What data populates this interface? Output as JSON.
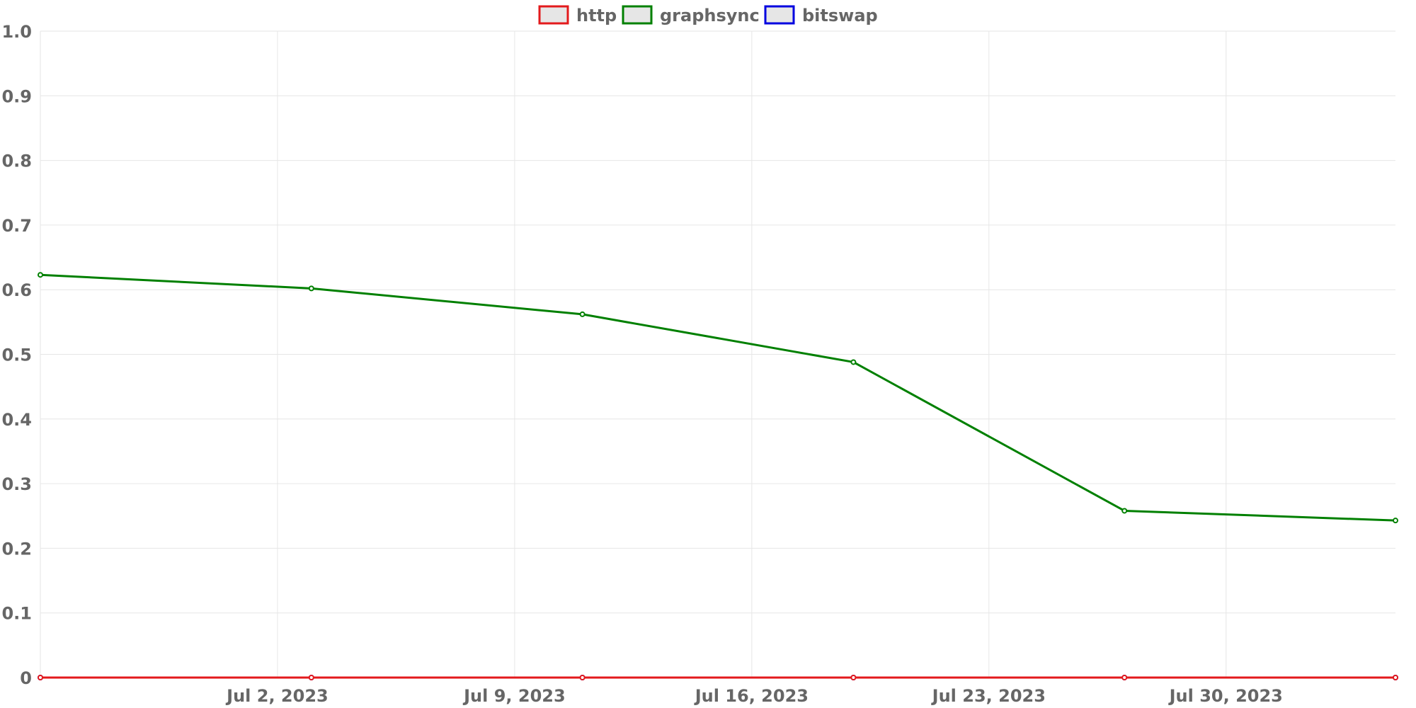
{
  "chart_data": {
    "type": "line",
    "title": "",
    "xlabel": "",
    "ylabel": "",
    "x": [
      "2023-06-25",
      "2023-07-03",
      "2023-07-11",
      "2023-07-19",
      "2023-07-27",
      "2023-08-04"
    ],
    "x_ticks": [
      {
        "date": "2023-07-02",
        "label": "Jul 2, 2023"
      },
      {
        "date": "2023-07-09",
        "label": "Jul 9, 2023"
      },
      {
        "date": "2023-07-16",
        "label": "Jul 16, 2023"
      },
      {
        "date": "2023-07-23",
        "label": "Jul 23, 2023"
      },
      {
        "date": "2023-07-30",
        "label": "Jul 30, 2023"
      }
    ],
    "xlim": [
      "2023-06-25",
      "2023-08-04"
    ],
    "ylim": [
      0,
      1
    ],
    "y_ticks": [
      "0",
      "0.1",
      "0.2",
      "0.3",
      "0.4",
      "0.5",
      "0.6",
      "0.7",
      "0.8",
      "0.9",
      "1.0"
    ],
    "grid": true,
    "legend_position": "top",
    "series": [
      {
        "name": "http",
        "color": "#e31a1c",
        "values": [
          0,
          0,
          0,
          0,
          0,
          0
        ]
      },
      {
        "name": "graphsync",
        "color": "#008000",
        "values": [
          0.623,
          0.602,
          0.562,
          0.488,
          0.258,
          0.243
        ]
      },
      {
        "name": "bitswap",
        "color": "#0000e0",
        "values": [
          0,
          0,
          0,
          0,
          0,
          0
        ]
      }
    ],
    "draw_order": [
      1,
      2,
      0
    ]
  }
}
